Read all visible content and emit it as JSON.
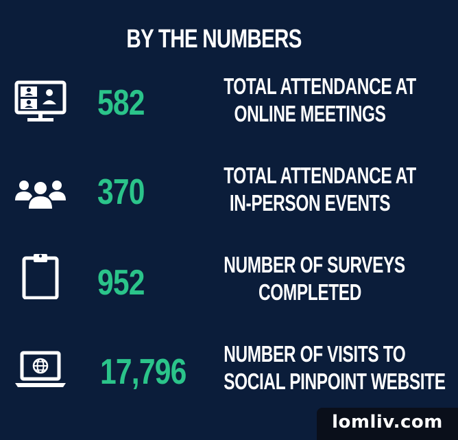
{
  "title": "BY THE NUMBERS",
  "stats": [
    {
      "icon": "video-meeting-icon",
      "value": "582",
      "label_lines": [
        "TOTAL ATTENDANCE AT",
        "ONLINE MEETINGS"
      ]
    },
    {
      "icon": "people-group-icon",
      "value": "370",
      "label_lines": [
        "TOTAL ATTENDANCE AT",
        "IN-PERSON EVENTS"
      ]
    },
    {
      "icon": "clipboard-icon",
      "value": "952",
      "label_lines": [
        "NUMBER OF SURVEYS",
        "COMPLETED"
      ]
    },
    {
      "icon": "laptop-globe-icon",
      "value": "17,796",
      "label_lines": [
        "NUMBER OF VISITS TO",
        "SOCIAL PINPOINT WEBSITE"
      ]
    }
  ],
  "watermark": "lomliv.com",
  "colors": {
    "background": "#0b1d3a",
    "accent": "#2bc48a",
    "text": "#ffffff"
  }
}
